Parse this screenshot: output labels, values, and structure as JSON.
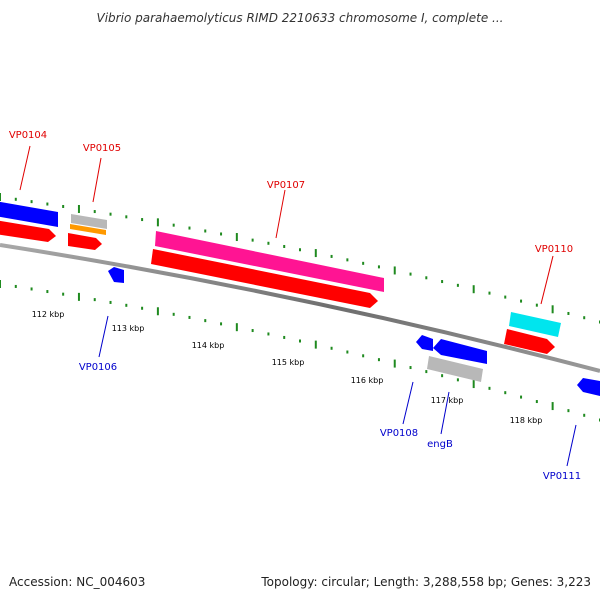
{
  "title": "Vibrio parahaemolyticus RIMD 2210633 chromosome I, complete ...",
  "footer": {
    "accession": "Accession: NC_004603",
    "summary": "Topology: circular; Length: 3,288,558 bp; Genes: 3,223"
  },
  "colors": {
    "backbone": "#7a7a7a",
    "tick": "#1f8a1f",
    "label_top": "#e00000",
    "label_bottom": "#0000cc",
    "forward_cds": "#ff0000",
    "reverse_gene": "#0000ff",
    "magenta_gene": "#ff1493",
    "cyan_gene": "#00e5ee",
    "orange_gene": "#ff9900",
    "grey_gene": "#b0b0b0"
  },
  "scale_labels": [
    "112 kbp",
    "113 kbp",
    "114 kbp",
    "115 kbp",
    "116 kbp",
    "117 kbp",
    "118 kbp"
  ],
  "genes_top": [
    {
      "label": "VP0104"
    },
    {
      "label": "VP0105"
    },
    {
      "label": "VP0107"
    },
    {
      "label": "VP0110"
    }
  ],
  "genes_bottom": [
    {
      "label": "VP0106"
    },
    {
      "label": "VP0108"
    },
    {
      "label": "engB"
    },
    {
      "label": "VP0111"
    }
  ]
}
